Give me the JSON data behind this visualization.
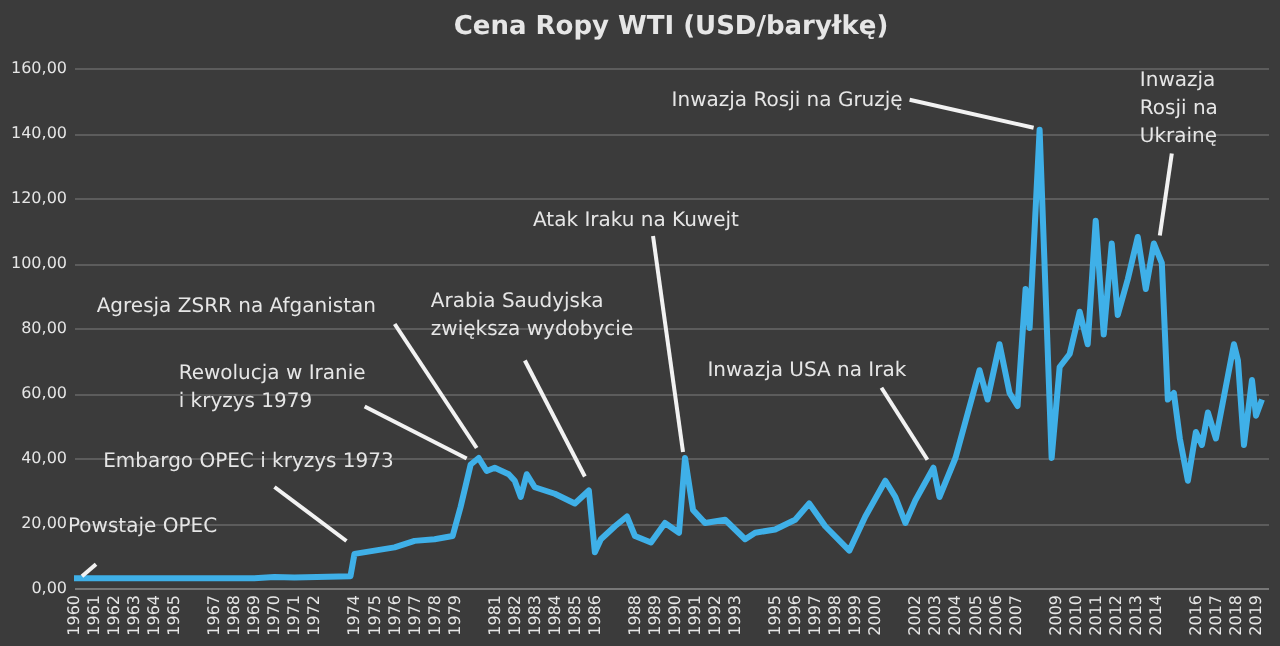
{
  "chart_data": {
    "type": "line",
    "title": "Cena Ropy WTI (USD/baryłkę)",
    "x": [
      1960,
      1969,
      1970,
      1971,
      1973.8,
      1974.0,
      1975,
      1976,
      1977,
      1978,
      1978.9,
      1979.3,
      1979.8,
      1980.2,
      1980.6,
      1981,
      1981.7,
      1982,
      1982.3,
      1982.6,
      1983,
      1984,
      1985,
      1985.7,
      1986.0,
      1986.3,
      1987,
      1987.6,
      1988,
      1988.8,
      1989.5,
      1990.2,
      1990.5,
      1990.9,
      1991.5,
      1992.5,
      1993.5,
      1994,
      1995,
      1996,
      1996.7,
      1997.5,
      1998.7,
      1999.5,
      2000.5,
      2001,
      2001.5,
      2002,
      2002.9,
      2003.2,
      2004,
      2005.2,
      2005.6,
      2006.2,
      2006.7,
      2007.1,
      2007.5,
      2007.7,
      2008.2,
      2008.8,
      2009.2,
      2009.7,
      2010.2,
      2010.6,
      2011.0,
      2011.4,
      2011.8,
      2012.1,
      2012.6,
      2013.1,
      2013.5,
      2013.9,
      2014.3,
      2014.6,
      2014.9,
      2015.2,
      2015.6,
      2016.0,
      2016.3,
      2016.6,
      2017.0,
      2017.9,
      2018.1,
      2018.4,
      2018.8,
      2019.0,
      2019.3
    ],
    "series": [
      {
        "color": "#3fb0e8",
        "values": [
          3,
          3,
          3.4,
          3.2,
          3.6,
          10.5,
          11.5,
          12.5,
          14.5,
          15,
          16,
          25,
          38,
          40,
          36,
          37,
          35,
          33,
          28,
          35,
          31,
          29,
          26,
          30,
          11,
          15,
          19,
          22,
          16,
          14,
          20,
          17,
          40,
          24,
          20,
          21,
          15,
          17,
          18,
          21,
          26,
          19,
          11.5,
          22,
          33,
          28,
          20,
          27,
          37,
          28,
          40,
          67,
          58,
          75,
          60,
          56,
          92,
          80,
          141,
          40,
          68,
          72,
          85,
          75,
          113,
          78,
          106,
          84,
          95,
          108,
          92,
          106,
          100,
          58,
          60,
          46,
          33,
          48,
          44,
          54,
          46,
          75,
          70,
          44,
          64,
          53,
          58
        ]
      }
    ],
    "xlim": [
      1960,
      2019.6
    ],
    "xticks": [
      1960,
      1961,
      1962,
      1963,
      1964,
      1965,
      1967,
      1968,
      1969,
      1970,
      1971,
      1972,
      1974,
      1975,
      1976,
      1977,
      1978,
      1979,
      1981,
      1982,
      1983,
      1984,
      1985,
      1986,
      1988,
      1989,
      1990,
      1991,
      1992,
      1993,
      1995,
      1996,
      1997,
      1998,
      1999,
      2000,
      2002,
      2003,
      2004,
      2005,
      2006,
      2007,
      2009,
      2010,
      2011,
      2012,
      2013,
      2014,
      2016,
      2017,
      2018,
      2019
    ],
    "ylim": [
      0,
      160
    ],
    "yticks": [
      {
        "value": 0,
        "label": "0,00"
      },
      {
        "value": 20,
        "label": "20,00"
      },
      {
        "value": 40,
        "label": "40,00"
      },
      {
        "value": 60,
        "label": "60,00"
      },
      {
        "value": 80,
        "label": "80,00"
      },
      {
        "value": 100,
        "label": "100,00"
      },
      {
        "value": 120,
        "label": "120,00"
      },
      {
        "value": 140,
        "label": "140,00"
      },
      {
        "value": 160,
        "label": "160,00"
      }
    ],
    "grid": "y",
    "annotations": [
      {
        "text": "Powstaje OPEC",
        "x": 1960.3,
        "y": 3
      },
      {
        "text": "Embargo OPEC i kryzys 1973",
        "x": 1973.9,
        "y": 12
      },
      {
        "text": "Rewolucja w Iranie\ni kryzys 1979",
        "x": 1979.8,
        "y": 38
      },
      {
        "text": "Agresja ZSRR na Afganistan",
        "x": 1980.3,
        "y": 40
      },
      {
        "text": "Arabia Saudyjska\nzwiększa wydobycie",
        "x": 1985.6,
        "y": 30
      },
      {
        "text": "Atak Iraku na Kuwejt",
        "x": 1990.5,
        "y": 40
      },
      {
        "text": "Inwazja USA na Irak",
        "x": 2002.9,
        "y": 37
      },
      {
        "text": "Inwazja Rosji na Gruzję",
        "x": 2008.2,
        "y": 141
      },
      {
        "text": "Inwazja\nRosji na\nUkrainę",
        "x": 2013.9,
        "y": 106
      }
    ]
  }
}
